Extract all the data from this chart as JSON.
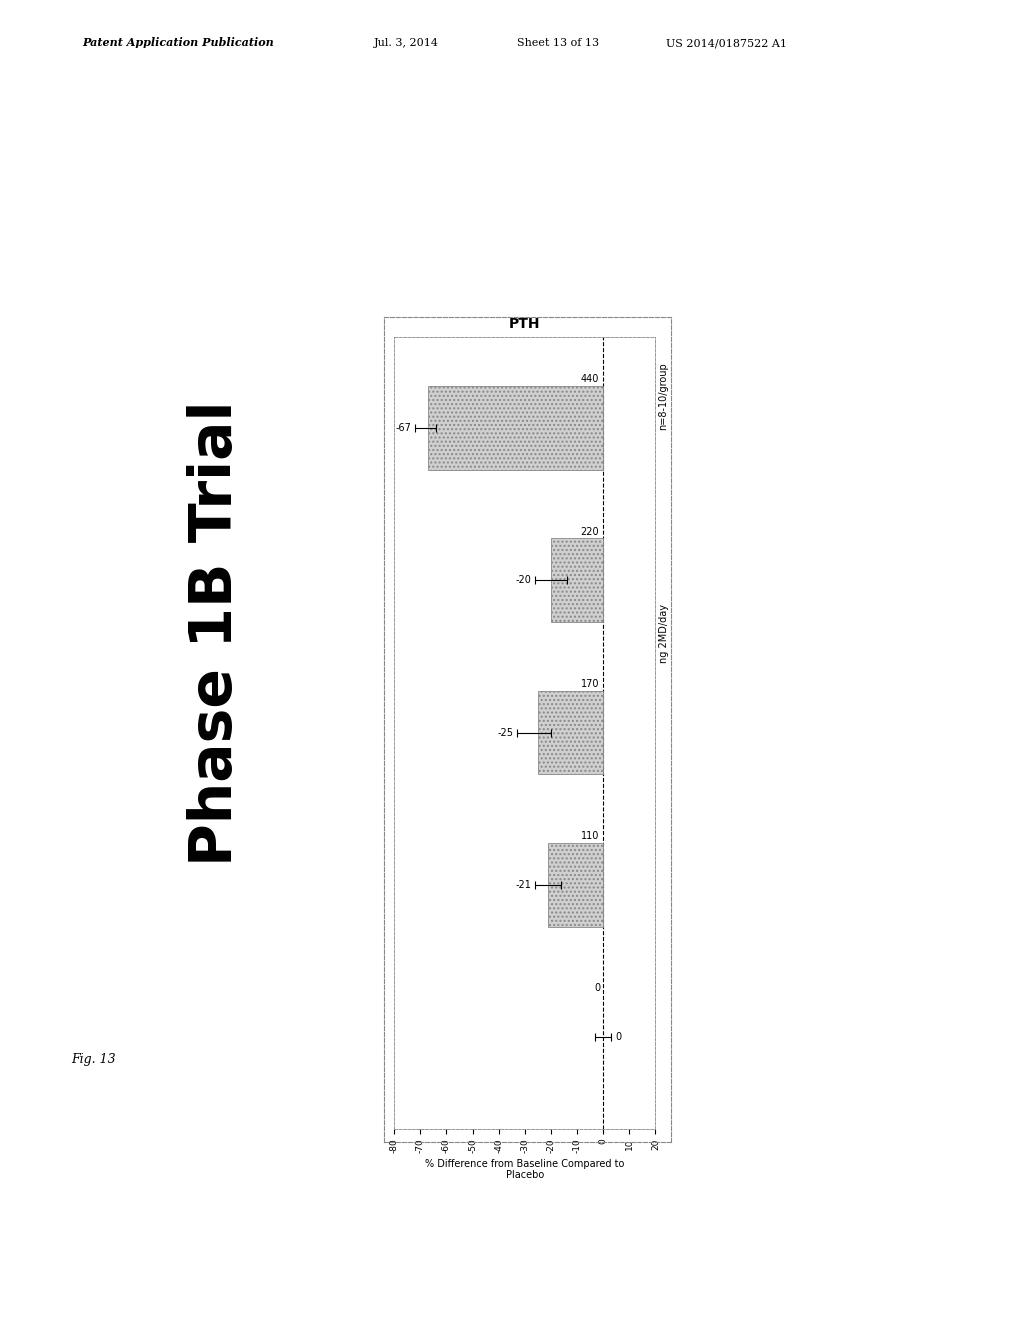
{
  "title": "Phase 1B Trial",
  "pth_label": "PTH",
  "xlabel": "% Difference from Baseline Compared to\nPlacebo",
  "x_label_note": "ng 2MD/day",
  "n_label": "n=8-10/group",
  "doses": [
    0,
    110,
    170,
    220,
    440
  ],
  "bar_values": [
    0,
    -21,
    -25,
    -20,
    -67
  ],
  "error_low": [
    3,
    5,
    8,
    6,
    5
  ],
  "error_high": [
    3,
    5,
    5,
    6,
    3
  ],
  "bar_color": "#d0d0d0",
  "bar_hatch": "....",
  "ylim_min": -80,
  "ylim_max": 20,
  "yticks": [
    20,
    10,
    0,
    -10,
    -20,
    -30,
    -40,
    -50,
    -60,
    -70,
    -80
  ],
  "background_color": "#ffffff",
  "font_size": 9,
  "fig_width": 10.24,
  "fig_height": 13.2,
  "dpi": 100,
  "header_text": "Patent Application Publication",
  "header_date": "Jul. 3, 2014",
  "header_sheet": "Sheet 13 of 13",
  "header_patent": "US 2014/0187522 A1",
  "fig_label": "Fig. 13"
}
